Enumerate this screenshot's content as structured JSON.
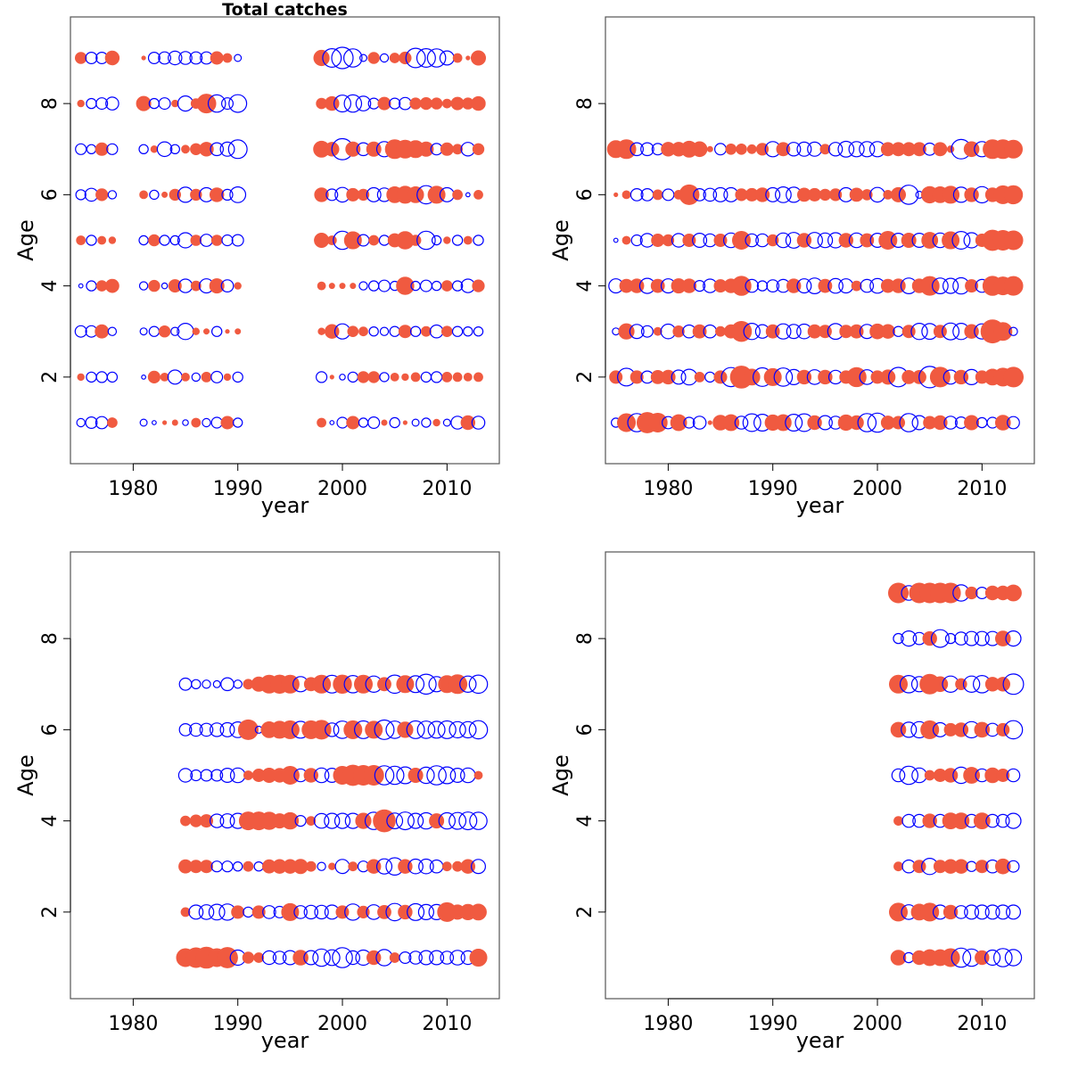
{
  "chart_data": [
    {
      "type": "scatter",
      "subtype": "bubble-residuals",
      "title": "Total catches",
      "xlabel": "year",
      "ylabel": "Age",
      "xlim": [
        1974,
        2015
      ],
      "ylim": [
        0.1,
        9.9
      ],
      "xticks": [
        1980,
        1990,
        2000,
        2010
      ],
      "yticks": [
        2,
        4,
        6,
        8
      ],
      "positive_color": "#f05a40",
      "negative_color": "#0000ff",
      "grid": false,
      "ages": [
        1,
        2,
        3,
        4,
        5,
        6,
        7,
        8,
        9
      ],
      "years": [
        1975,
        1976,
        1977,
        1978,
        1981,
        1982,
        1983,
        1984,
        1985,
        1986,
        1987,
        1988,
        1989,
        1990,
        1998,
        1999,
        2000,
        2001,
        2002,
        2003,
        2004,
        2005,
        2006,
        2007,
        2008,
        2009,
        2010,
        2011,
        2012,
        2013
      ],
      "residuals": [
        [
          -0.4,
          -0.8,
          -0.9,
          0.6,
          -0.3,
          -0.1,
          0.1,
          0.2,
          -0.2,
          0.5,
          -0.4,
          -0.7,
          1.0,
          -0.5,
          0.5,
          -0.1,
          -0.7,
          1.0,
          -0.5,
          -0.8,
          0.2,
          -0.6,
          0.1,
          -0.3,
          -0.5,
          0.3,
          -0.3,
          -1.0,
          1.2,
          -1.0
        ],
        [
          0.3,
          -0.6,
          -0.7,
          -0.6,
          -0.1,
          0.9,
          0.4,
          -1.2,
          0.4,
          -0.4,
          0.6,
          -0.8,
          0.3,
          -0.6,
          -0.7,
          0.1,
          -0.2,
          -0.6,
          0.8,
          0.8,
          -0.5,
          0.4,
          0.3,
          0.5,
          -0.6,
          -0.7,
          0.6,
          0.5,
          0.4,
          0.5
        ],
        [
          -0.8,
          -0.8,
          1.1,
          -0.4,
          -0.3,
          -0.6,
          0.8,
          -0.4,
          -1.6,
          0.3,
          0.2,
          -0.6,
          0.1,
          0.2,
          0.3,
          1.2,
          -1.4,
          0.7,
          0.5,
          -0.5,
          -0.4,
          -0.6,
          1.0,
          -0.6,
          0.6,
          -1.0,
          0.7,
          -0.6,
          -0.5,
          -0.5
        ],
        [
          -0.1,
          -0.6,
          0.7,
          1.1,
          -0.4,
          0.8,
          -0.2,
          1.0,
          -1.1,
          0.6,
          -1.2,
          1.3,
          -0.9,
          0.3,
          0.4,
          0.2,
          0.2,
          0.2,
          -0.4,
          -0.6,
          -0.8,
          -0.5,
          1.9,
          -0.5,
          -0.8,
          -0.5,
          0.7,
          -0.6,
          -1.1,
          0.9
        ],
        [
          0.5,
          -0.6,
          0.4,
          0.3,
          -0.5,
          0.8,
          -0.6,
          -0.5,
          -1.4,
          0.7,
          -0.9,
          0.7,
          -0.7,
          -0.8,
          1.3,
          0.5,
          -2.0,
          1.8,
          -0.8,
          0.6,
          -0.6,
          1.1,
          1.9,
          0.7,
          -2.0,
          -0.5,
          0.3,
          -0.6,
          0.4,
          -0.6
        ],
        [
          -0.6,
          -1.0,
          0.9,
          -0.4,
          0.4,
          -0.5,
          0.2,
          0.8,
          -1.4,
          0.8,
          -1.2,
          1.2,
          -0.7,
          -1.5,
          1.2,
          -0.8,
          -1.3,
          1.0,
          0.8,
          -1.2,
          -1.1,
          1.6,
          1.8,
          1.6,
          -2.0,
          1.8,
          -1.2,
          0.6,
          -0.1,
          0.5
        ],
        [
          -0.7,
          -0.5,
          1.0,
          -0.7,
          -0.5,
          0.3,
          -1.3,
          -0.5,
          0.4,
          0.8,
          1.2,
          -1.0,
          -1.2,
          -2.1,
          1.6,
          1.2,
          -2.7,
          1.3,
          -1.0,
          1.3,
          -1.4,
          2.2,
          2.0,
          1.8,
          1.3,
          -0.8,
          1.0,
          0.6,
          -1.1,
          0.8
        ],
        [
          0.3,
          -0.6,
          -0.8,
          -1.0,
          1.3,
          -0.6,
          -0.8,
          0.3,
          -1.4,
          0.6,
          2.2,
          -1.8,
          -0.8,
          -1.9,
          0.7,
          1.2,
          -1.7,
          -1.8,
          -1.3,
          -0.7,
          1.0,
          -0.7,
          -0.9,
          0.8,
          0.9,
          0.8,
          0.5,
          1.0,
          0.8,
          1.2
        ],
        [
          0.8,
          -0.8,
          -0.8,
          1.2,
          0.1,
          -0.8,
          -0.9,
          -1.1,
          -1.0,
          -0.9,
          -0.9,
          1.0,
          0.5,
          -0.3,
          1.5,
          -2.1,
          -2.8,
          -2.0,
          -0.3,
          0.8,
          -0.4,
          0.6,
          0.9,
          -2.3,
          -2.1,
          -2.0,
          -1.2,
          0.5,
          0.1,
          1.3
        ]
      ]
    },
    {
      "type": "scatter",
      "subtype": "bubble-residuals",
      "title": "",
      "xlabel": "year",
      "ylabel": "Age",
      "xlim": [
        1974,
        2015
      ],
      "ylim": [
        0.1,
        9.9
      ],
      "xticks": [
        1980,
        1990,
        2000,
        2010
      ],
      "yticks": [
        2,
        4,
        6,
        8
      ],
      "positive_color": "#f05a40",
      "negative_color": "#0000ff",
      "grid": false,
      "ages": [
        1,
        2,
        3,
        4,
        5,
        6,
        7
      ],
      "years": [
        1975,
        1976,
        1977,
        1978,
        1979,
        1980,
        1981,
        1982,
        1983,
        1984,
        1985,
        1986,
        1987,
        1988,
        1989,
        1990,
        1991,
        1992,
        1993,
        1994,
        1995,
        1996,
        1997,
        1998,
        1999,
        2000,
        2001,
        2002,
        2003,
        2004,
        2005,
        2006,
        2007,
        2008,
        2009,
        2010,
        2011,
        2012,
        2013
      ],
      "residuals": [
        [
          -0.5,
          2.0,
          -2.0,
          2.6,
          2.2,
          -0.9,
          1.6,
          -0.7,
          -1.0,
          0.1,
          1.4,
          1.6,
          -1.0,
          -1.9,
          -1.7,
          1.5,
          1.6,
          -1.7,
          -1.9,
          1.2,
          -1.2,
          -1.0,
          1.5,
          1.2,
          -2.0,
          -2.2,
          1.1,
          1.0,
          -2.0,
          -1.2,
          1.0,
          1.2,
          -1.0,
          -0.8,
          1.3,
          -0.6,
          -0.7,
          1.4,
          -0.9
        ],
        [
          1.0,
          -1.9,
          1.0,
          -0.9,
          1.1,
          1.2,
          -1.2,
          -1.5,
          0.6,
          -0.6,
          1.0,
          -2.2,
          3.0,
          1.6,
          -2.1,
          1.8,
          -2.0,
          -1.4,
          1.2,
          -1.3,
          1.2,
          -1.1,
          1.0,
          2.3,
          -1.3,
          1.0,
          1.3,
          -2.3,
          1.1,
          1.1,
          -2.8,
          2.4,
          -1.2,
          1.2,
          -1.4,
          1.0,
          1.6,
          2.0,
          2.4
        ],
        [
          -0.3,
          1.5,
          -1.2,
          -0.8,
          0.4,
          -1.3,
          0.8,
          -1.0,
          1.1,
          -1.0,
          0.6,
          1.1,
          2.5,
          -1.6,
          -1.1,
          1.1,
          -1.4,
          -1.2,
          -1.3,
          1.1,
          1.0,
          -1.5,
          1.0,
          1.1,
          -1.2,
          1.4,
          1.2,
          -0.6,
          1.0,
          -1.6,
          -1.5,
          1.0,
          -1.7,
          -1.6,
          1.2,
          -1.4,
          3.3,
          2.0,
          -0.4
        ],
        [
          -1.2,
          1.1,
          1.2,
          -1.4,
          1.1,
          -1.2,
          1.3,
          1.2,
          -0.7,
          -1.1,
          1.0,
          1.2,
          2.3,
          -1.0,
          -0.6,
          -0.9,
          -1.0,
          1.2,
          -1.2,
          -1.5,
          1.1,
          -1.3,
          -1.2,
          0.6,
          -1.0,
          -1.3,
          1.1,
          1.2,
          -1.5,
          1.2,
          2.2,
          -1.5,
          -1.4,
          -1.6,
          1.0,
          -1.0,
          2.3,
          2.0,
          2.2
        ],
        [
          -0.1,
          0.4,
          -0.7,
          -1.1,
          1.0,
          0.8,
          -1.1,
          1.0,
          -1.2,
          -1.0,
          1.0,
          -1.3,
          2.0,
          -1.0,
          -1.0,
          0.8,
          -1.3,
          -1.5,
          1.2,
          -1.5,
          -1.3,
          -1.4,
          1.2,
          -1.3,
          1.1,
          -1.2,
          2.0,
          -1.2,
          1.3,
          -1.2,
          1.6,
          -1.3,
          1.8,
          -1.9,
          -1.4,
          1.0,
          2.6,
          2.4,
          2.2
        ],
        [
          0.1,
          0.4,
          -0.9,
          -0.9,
          0.6,
          -0.8,
          0.5,
          2.4,
          -0.9,
          -1.0,
          -1.2,
          -1.2,
          0.9,
          1.0,
          1.2,
          -1.2,
          -1.5,
          -1.4,
          1.1,
          1.0,
          0.8,
          0.9,
          -1.2,
          1.1,
          0.7,
          -1.3,
          0.5,
          1.3,
          -2.2,
          -0.3,
          1.7,
          1.6,
          1.8,
          -1.4,
          1.2,
          -1.6,
          1.2,
          2.0,
          2.1
        ],
        [
          1.8,
          2.2,
          -1.0,
          -1.0,
          -0.8,
          1.2,
          1.2,
          1.6,
          1.4,
          0.2,
          -0.8,
          0.7,
          0.7,
          0.5,
          0.9,
          -1.4,
          1.1,
          -1.1,
          -1.2,
          -1.2,
          0.6,
          -1.1,
          -1.5,
          -1.4,
          -1.4,
          -1.4,
          1.1,
          1.1,
          1.1,
          1.1,
          -0.9,
          1.1,
          0.3,
          -2.3,
          1.4,
          -1.4,
          2.2,
          2.2,
          2.0
        ]
      ]
    },
    {
      "type": "scatter",
      "subtype": "bubble-residuals",
      "title": "",
      "xlabel": "year",
      "ylabel": "Age",
      "xlim": [
        1974,
        2015
      ],
      "ylim": [
        0.1,
        9.9
      ],
      "xticks": [
        1980,
        1990,
        2000,
        2010
      ],
      "yticks": [
        2,
        4,
        6,
        8
      ],
      "positive_color": "#f05a40",
      "negative_color": "#0000ff",
      "grid": false,
      "ages": [
        1,
        2,
        3,
        4,
        5,
        6,
        7
      ],
      "years": [
        1985,
        1986,
        1987,
        1988,
        1989,
        1990,
        1991,
        1992,
        1993,
        1994,
        1995,
        1996,
        1997,
        1998,
        1999,
        2000,
        2001,
        2002,
        2003,
        2004,
        2005,
        2006,
        2007,
        2008,
        2009,
        2010,
        2011,
        2012,
        2013
      ],
      "residuals": [
        [
          2.0,
          2.4,
          2.8,
          2.0,
          2.6,
          -1.4,
          0.8,
          0.6,
          -1.1,
          -1.0,
          -1.2,
          1.4,
          -1.2,
          -1.8,
          -1.5,
          -2.4,
          -1.1,
          -1.4,
          1.2,
          -1.6,
          0.6,
          -0.8,
          -1.0,
          -1.2,
          -1.2,
          -1.0,
          -1.3,
          -1.1,
          1.8
        ],
        [
          0.5,
          -1.2,
          -1.3,
          -1.5,
          -1.6,
          1.0,
          -0.6,
          1.0,
          -1.0,
          -0.8,
          1.8,
          -1.0,
          -1.1,
          -1.1,
          -1.2,
          1.0,
          -1.6,
          0.9,
          -1.3,
          1.1,
          -1.8,
          1.2,
          -1.7,
          -1.4,
          -1.4,
          2.2,
          1.3,
          1.5,
          1.6
        ],
        [
          1.1,
          1.0,
          1.0,
          -0.7,
          -0.7,
          -0.5,
          0.6,
          -0.5,
          1.1,
          1.2,
          1.2,
          1.3,
          0.6,
          -0.4,
          0.3,
          -1.2,
          0.5,
          -0.7,
          1.2,
          -1.4,
          -1.8,
          1.2,
          -1.3,
          -1.3,
          -1.0,
          0.5,
          0.6,
          1.2,
          -1.2
        ],
        [
          0.6,
          0.9,
          1.0,
          -1.1,
          -1.2,
          -1.4,
          2.0,
          2.0,
          1.9,
          1.3,
          1.7,
          -0.7,
          0.5,
          -1.3,
          -1.4,
          -1.4,
          -1.4,
          1.5,
          -1.8,
          3.0,
          -1.5,
          -1.9,
          -1.4,
          -1.6,
          1.3,
          -1.6,
          -1.7,
          -1.9,
          -1.8
        ],
        [
          -1.1,
          -0.7,
          -0.8,
          -0.8,
          -1.2,
          -1.3,
          0.5,
          1.0,
          1.3,
          1.2,
          2.0,
          -1.0,
          1.2,
          -1.3,
          -1.2,
          2.0,
          2.6,
          2.4,
          2.4,
          -2.2,
          -2.0,
          -1.7,
          1.3,
          -1.6,
          -2.2,
          -1.7,
          -1.2,
          -1.3,
          0.4
        ],
        [
          -0.9,
          -1.0,
          -1.0,
          -1.1,
          -1.2,
          -1.5,
          2.4,
          -0.3,
          1.6,
          1.8,
          2.0,
          -1.7,
          2.0,
          2.2,
          -1.1,
          -1.8,
          2.0,
          -1.9,
          1.8,
          -2.3,
          -1.8,
          1.5,
          -1.9,
          -1.8,
          -1.7,
          -1.9,
          -1.6,
          -1.6,
          -2.0
        ],
        [
          -0.9,
          -0.5,
          -0.4,
          -0.3,
          -1.0,
          -0.4,
          0.6,
          1.3,
          2.0,
          2.1,
          2.0,
          -1.4,
          1.1,
          2.0,
          -1.9,
          2.1,
          -1.8,
          2.0,
          -1.6,
          1.1,
          -2.0,
          1.8,
          -1.7,
          -2.4,
          -1.4,
          1.8,
          2.2,
          -1.6,
          -2.0
        ]
      ]
    },
    {
      "type": "scatter",
      "subtype": "bubble-residuals",
      "title": "",
      "xlabel": "year",
      "ylabel": "Age",
      "xlim": [
        1974,
        2015
      ],
      "ylim": [
        0.1,
        9.9
      ],
      "xticks": [
        1980,
        1990,
        2000,
        2010
      ],
      "yticks": [
        2,
        4,
        6,
        8
      ],
      "positive_color": "#f05a40",
      "negative_color": "#0000ff",
      "grid": false,
      "ages": [
        1,
        2,
        3,
        4,
        5,
        6,
        7,
        8,
        9
      ],
      "years": [
        2002,
        2003,
        2004,
        2005,
        2006,
        2007,
        2008,
        2009,
        2010,
        2011,
        2012,
        2013
      ],
      "residuals": [
        [
          1.4,
          -0.6,
          1.2,
          1.6,
          1.6,
          2.0,
          -2.2,
          -1.8,
          1.2,
          -1.4,
          -2.0,
          -1.6
        ],
        [
          2.0,
          -1.3,
          1.6,
          2.0,
          -1.2,
          1.2,
          -1.0,
          -1.2,
          -1.2,
          -1.2,
          -1.2,
          -1.2
        ],
        [
          0.5,
          -1.0,
          1.0,
          -1.6,
          1.0,
          1.2,
          1.2,
          -0.6,
          1.0,
          -1.0,
          1.4,
          -0.8
        ],
        [
          0.5,
          -1.0,
          -1.0,
          1.2,
          -1.0,
          1.6,
          1.6,
          -1.0,
          1.6,
          -1.0,
          -1.0,
          -1.4
        ],
        [
          -1.0,
          -2.0,
          -1.3,
          0.6,
          1.0,
          1.2,
          -1.6,
          1.6,
          -1.0,
          1.4,
          1.0,
          -1.0
        ],
        [
          1.4,
          -1.4,
          -1.6,
          2.0,
          -1.2,
          1.0,
          1.2,
          -1.6,
          1.4,
          -1.0,
          1.0,
          -2.0
        ],
        [
          2.0,
          -1.8,
          -1.4,
          2.4,
          1.4,
          -1.6,
          0.8,
          -1.6,
          -1.8,
          1.2,
          1.2,
          -2.5
        ],
        [
          -0.6,
          -1.4,
          -0.9,
          1.2,
          -1.9,
          -0.6,
          -1.0,
          -1.2,
          -1.2,
          -1.2,
          1.4,
          -1.4
        ],
        [
          2.4,
          -1.3,
          2.4,
          2.4,
          2.4,
          2.4,
          -1.6,
          0.9,
          -0.8,
          1.2,
          1.2,
          1.6
        ]
      ]
    }
  ]
}
